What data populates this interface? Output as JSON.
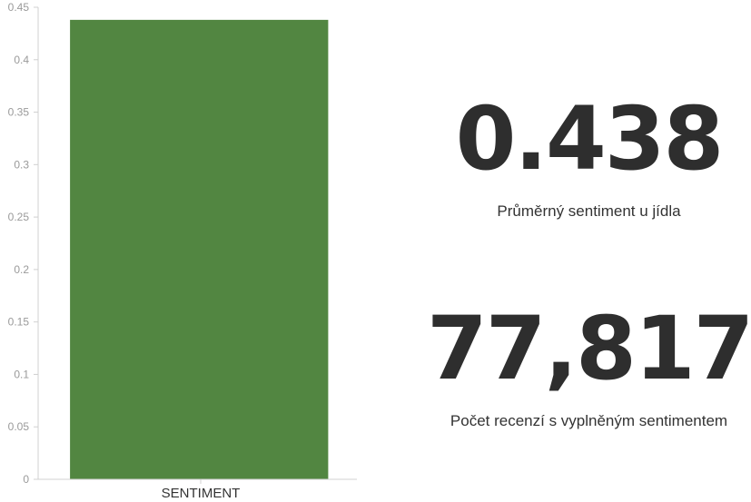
{
  "chart_data": {
    "type": "bar",
    "categories": [
      "SENTIMENT"
    ],
    "values": [
      0.438
    ],
    "ylim": [
      0,
      0.45
    ],
    "yticks": [
      0,
      0.05,
      0.1,
      0.15,
      0.2,
      0.25,
      0.3,
      0.35,
      0.4,
      0.45
    ],
    "ytick_labels": [
      "0",
      "0.05",
      "0.1",
      "0.15",
      "0.2",
      "0.25",
      "0.3",
      "0.35",
      "0.4",
      "0.45"
    ],
    "bar_color": "#528641",
    "grid": false,
    "legend": "none"
  },
  "kpis": [
    {
      "value": "0.438",
      "label": "Průměrný sentiment u jídla"
    },
    {
      "value": "77,817",
      "label": "Počet recenzí s vyplněným sentimentem"
    }
  ]
}
